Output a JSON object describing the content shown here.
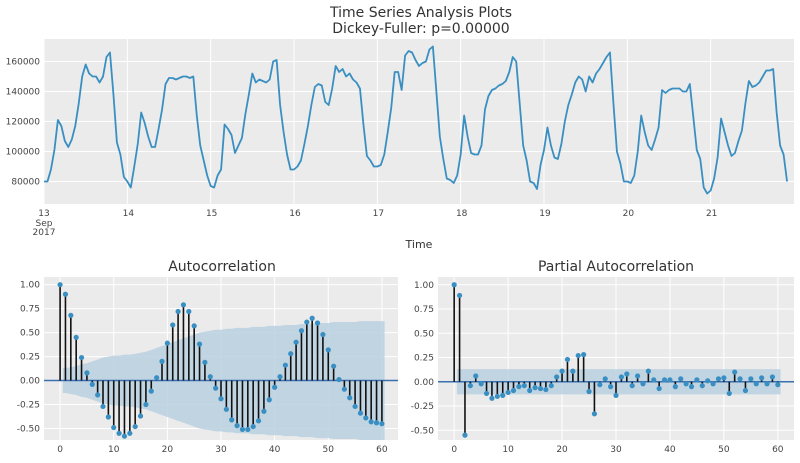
{
  "title_line1": "Time Series Analysis Plots",
  "title_line2": "Dickey-Fuller: p=0.00000",
  "colors": {
    "line": "#3a8fc2",
    "panel": "#ebebeb",
    "grid": "#ffffff",
    "band": "#b8d0e1",
    "stem": "#111111",
    "zeroline": "#3a6fb0",
    "text": "#333333",
    "tick": "#444444"
  },
  "chart_data": [
    {
      "type": "line",
      "title": "Time Series Analysis Plots\nDickey-Fuller: p=0.00000",
      "xlabel": "Time",
      "ylabel": "",
      "ylim": [
        65000,
        175000
      ],
      "yticks": [
        80000,
        100000,
        120000,
        140000,
        160000
      ],
      "ytick_labels": [
        "80000",
        "100000",
        "120000",
        "140000",
        "160000"
      ],
      "xlim": [
        0,
        216
      ],
      "xticks": [
        0,
        24,
        48,
        72,
        96,
        120,
        144,
        168,
        192
      ],
      "xtick_labels": [
        "13",
        "14",
        "15",
        "16",
        "17",
        "18",
        "19",
        "20",
        "21"
      ],
      "xtick_sublabels": [
        "Sep",
        "2017"
      ],
      "x_unit": "hour since 2017-09-13 00:00",
      "grid": true,
      "values": [
        80000,
        80000,
        88000,
        101000,
        121000,
        117000,
        107000,
        103000,
        108000,
        117000,
        132000,
        150000,
        158000,
        152000,
        150000,
        150000,
        146000,
        150000,
        163000,
        166000,
        138000,
        106000,
        98000,
        83000,
        80000,
        76000,
        90000,
        105000,
        126000,
        119000,
        110000,
        103000,
        103000,
        115000,
        128000,
        145000,
        149000,
        149000,
        148000,
        149000,
        150000,
        150000,
        149000,
        150000,
        124000,
        104000,
        94000,
        84000,
        77000,
        76000,
        84000,
        88000,
        118000,
        115000,
        111000,
        99000,
        104000,
        109000,
        125000,
        138000,
        152000,
        146000,
        148000,
        147000,
        146000,
        148000,
        160000,
        161000,
        131000,
        113000,
        98000,
        88000,
        88000,
        90000,
        94000,
        105000,
        117000,
        131000,
        143000,
        145000,
        144000,
        133000,
        131000,
        142000,
        157000,
        153000,
        155000,
        150000,
        152000,
        148000,
        146000,
        142000,
        118000,
        97000,
        94000,
        90000,
        90000,
        91000,
        98000,
        113000,
        129000,
        153000,
        153000,
        141000,
        164000,
        167000,
        166000,
        161000,
        157000,
        159000,
        160000,
        168000,
        170000,
        140000,
        110000,
        95000,
        82000,
        81000,
        79000,
        84000,
        98000,
        124000,
        110000,
        99000,
        98000,
        98000,
        104000,
        128000,
        137000,
        141000,
        142000,
        144000,
        145000,
        147000,
        153000,
        163000,
        160000,
        132000,
        104000,
        94000,
        80000,
        79000,
        75000,
        91000,
        101000,
        116000,
        104000,
        96000,
        95000,
        105000,
        120000,
        131000,
        138000,
        146000,
        150000,
        148000,
        140000,
        150000,
        146000,
        152000,
        155000,
        159000,
        163000,
        166000,
        132000,
        100000,
        92000,
        80000,
        80000,
        79000,
        84000,
        100000,
        124000,
        113000,
        104000,
        101000,
        108000,
        116000,
        141000,
        139000,
        141000,
        142000,
        142000,
        142000,
        140000,
        140000,
        145000,
        123000,
        101000,
        95000,
        76000,
        72000,
        74000,
        82000,
        96000,
        122000,
        113000,
        104000,
        97000,
        99000,
        107000,
        114000,
        132000,
        147000,
        143000,
        144000,
        146000,
        150000,
        154000,
        154000,
        155000,
        126000,
        104000,
        98000,
        80000
      ]
    },
    {
      "type": "stem",
      "title": "Autocorrelation",
      "ylim": [
        -0.62,
        1.08
      ],
      "yticks": [
        -0.5,
        -0.25,
        0.0,
        0.25,
        0.5,
        0.75,
        1.0
      ],
      "ytick_labels": [
        "-0.50",
        "-0.25",
        "0.00",
        "0.25",
        "0.50",
        "0.75",
        "1.00"
      ],
      "xlim": [
        -3,
        63
      ],
      "xticks": [
        0,
        10,
        20,
        30,
        40,
        50,
        60
      ],
      "xtick_labels": [
        "0",
        "10",
        "20",
        "30",
        "40",
        "50",
        "60"
      ],
      "grid": true,
      "lags": [
        0,
        1,
        2,
        3,
        4,
        5,
        6,
        7,
        8,
        9,
        10,
        11,
        12,
        13,
        14,
        15,
        16,
        17,
        18,
        19,
        20,
        21,
        22,
        23,
        24,
        25,
        26,
        27,
        28,
        29,
        30,
        31,
        32,
        33,
        34,
        35,
        36,
        37,
        38,
        39,
        40,
        41,
        42,
        43,
        44,
        45,
        46,
        47,
        48,
        49,
        50,
        51,
        52,
        53,
        54,
        55,
        56,
        57,
        58,
        59,
        60
      ],
      "values": [
        1.0,
        0.9,
        0.68,
        0.45,
        0.24,
        0.08,
        -0.04,
        -0.15,
        -0.27,
        -0.38,
        -0.49,
        -0.55,
        -0.58,
        -0.55,
        -0.48,
        -0.37,
        -0.25,
        -0.11,
        0.03,
        0.2,
        0.39,
        0.58,
        0.72,
        0.79,
        0.72,
        0.57,
        0.38,
        0.19,
        0.04,
        -0.08,
        -0.19,
        -0.3,
        -0.41,
        -0.47,
        -0.51,
        -0.51,
        -0.48,
        -0.42,
        -0.32,
        -0.2,
        -0.07,
        0.04,
        0.16,
        0.28,
        0.4,
        0.52,
        0.61,
        0.65,
        0.6,
        0.48,
        0.32,
        0.15,
        0.01,
        -0.09,
        -0.18,
        -0.27,
        -0.34,
        -0.39,
        -0.43,
        -0.44,
        -0.45
      ],
      "confint_upper": [
        0.13,
        0.13,
        0.14,
        0.15,
        0.17,
        0.18,
        0.2,
        0.22,
        0.24,
        0.25,
        0.26,
        0.26,
        0.27,
        0.27,
        0.28,
        0.29,
        0.3,
        0.32,
        0.34,
        0.36,
        0.38,
        0.4,
        0.42,
        0.44,
        0.46,
        0.48,
        0.5,
        0.51,
        0.52,
        0.53,
        0.53,
        0.54,
        0.54,
        0.55,
        0.55,
        0.55,
        0.56,
        0.56,
        0.56,
        0.57,
        0.57,
        0.57,
        0.58,
        0.58,
        0.58,
        0.59,
        0.59,
        0.59,
        0.6,
        0.6,
        0.6,
        0.61,
        0.61,
        0.61,
        0.61,
        0.61,
        0.62,
        0.62,
        0.62,
        0.62,
        0.62
      ]
    },
    {
      "type": "stem",
      "title": "Partial Autocorrelation",
      "ylim": [
        -0.6,
        1.08
      ],
      "yticks": [
        -0.5,
        -0.25,
        0.0,
        0.25,
        0.5,
        0.75,
        1.0
      ],
      "ytick_labels": [
        "-0.50",
        "-0.25",
        "0.00",
        "0.25",
        "0.50",
        "0.75",
        "1.00"
      ],
      "xlim": [
        -3,
        63
      ],
      "xticks": [
        0,
        10,
        20,
        30,
        40,
        50,
        60
      ],
      "xtick_labels": [
        "0",
        "10",
        "20",
        "30",
        "40",
        "50",
        "60"
      ],
      "grid": true,
      "lags": [
        0,
        1,
        2,
        3,
        4,
        5,
        6,
        7,
        8,
        9,
        10,
        11,
        12,
        13,
        14,
        15,
        16,
        17,
        18,
        19,
        20,
        21,
        22,
        23,
        24,
        25,
        26,
        27,
        28,
        29,
        30,
        31,
        32,
        33,
        34,
        35,
        36,
        37,
        38,
        39,
        40,
        41,
        42,
        43,
        44,
        45,
        46,
        47,
        48,
        49,
        50,
        51,
        52,
        53,
        54,
        55,
        56,
        57,
        58,
        59,
        60
      ],
      "values": [
        1.0,
        0.89,
        -0.55,
        -0.04,
        0.06,
        -0.02,
        -0.12,
        -0.17,
        -0.15,
        -0.14,
        -0.11,
        -0.09,
        -0.05,
        -0.04,
        -0.09,
        -0.06,
        -0.07,
        -0.08,
        -0.04,
        0.05,
        0.11,
        0.23,
        0.11,
        0.27,
        0.28,
        -0.1,
        -0.33,
        -0.03,
        0.03,
        -0.05,
        -0.14,
        0.05,
        0.08,
        -0.04,
        0.06,
        -0.02,
        0.11,
        0.02,
        -0.07,
        0.02,
        0.02,
        -0.05,
        0.03,
        -0.02,
        -0.05,
        0.02,
        -0.04,
        0.01,
        -0.02,
        0.03,
        0.04,
        -0.12,
        0.1,
        0.03,
        -0.09,
        0.03,
        -0.02,
        0.04,
        -0.02,
        0.05,
        -0.03
      ],
      "confint_upper": 0.13
    }
  ],
  "axis_label": "Time"
}
